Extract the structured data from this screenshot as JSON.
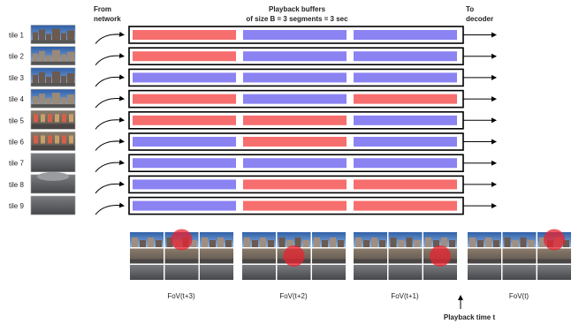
{
  "header": {
    "from_network_line1": "From",
    "from_network_line2": "network",
    "buffers_line1": "Playback buffers",
    "buffers_line2": "of size B = 3 segments = 3 sec",
    "to_decoder_line1": "To",
    "to_decoder_line2": "decoder"
  },
  "colors": {
    "red_segment": "#f76e6e",
    "blue_segment": "#8b83f2",
    "fov_marker": "#e8232f"
  },
  "tiles": [
    {
      "label": "tile 1",
      "segments": [
        "red",
        "blue",
        "blue"
      ]
    },
    {
      "label": "tile 2",
      "segments": [
        "red",
        "blue",
        "blue"
      ]
    },
    {
      "label": "tile 3",
      "segments": [
        "blue",
        "blue",
        "blue"
      ]
    },
    {
      "label": "tile 4",
      "segments": [
        "red",
        "blue",
        "red"
      ]
    },
    {
      "label": "tile 5",
      "segments": [
        "red",
        "red",
        "blue"
      ]
    },
    {
      "label": "tile 6",
      "segments": [
        "blue",
        "red",
        "blue"
      ]
    },
    {
      "label": "tile 7",
      "segments": [
        "blue",
        "blue",
        "blue"
      ]
    },
    {
      "label": "tile 8",
      "segments": [
        "blue",
        "red",
        "red"
      ]
    },
    {
      "label": "tile 9",
      "segments": [
        "blue",
        "red",
        "red"
      ]
    }
  ],
  "fov_panels": [
    {
      "label": "FoV(t+3)",
      "highlight_tile": 2
    },
    {
      "label": "FoV(t+2)",
      "highlight_tile": 5
    },
    {
      "label": "FoV(t+1)",
      "highlight_tile": 6
    },
    {
      "label": "FoV(t)",
      "highlight_tile": 3
    }
  ],
  "playback_time_label": "Playback time t"
}
